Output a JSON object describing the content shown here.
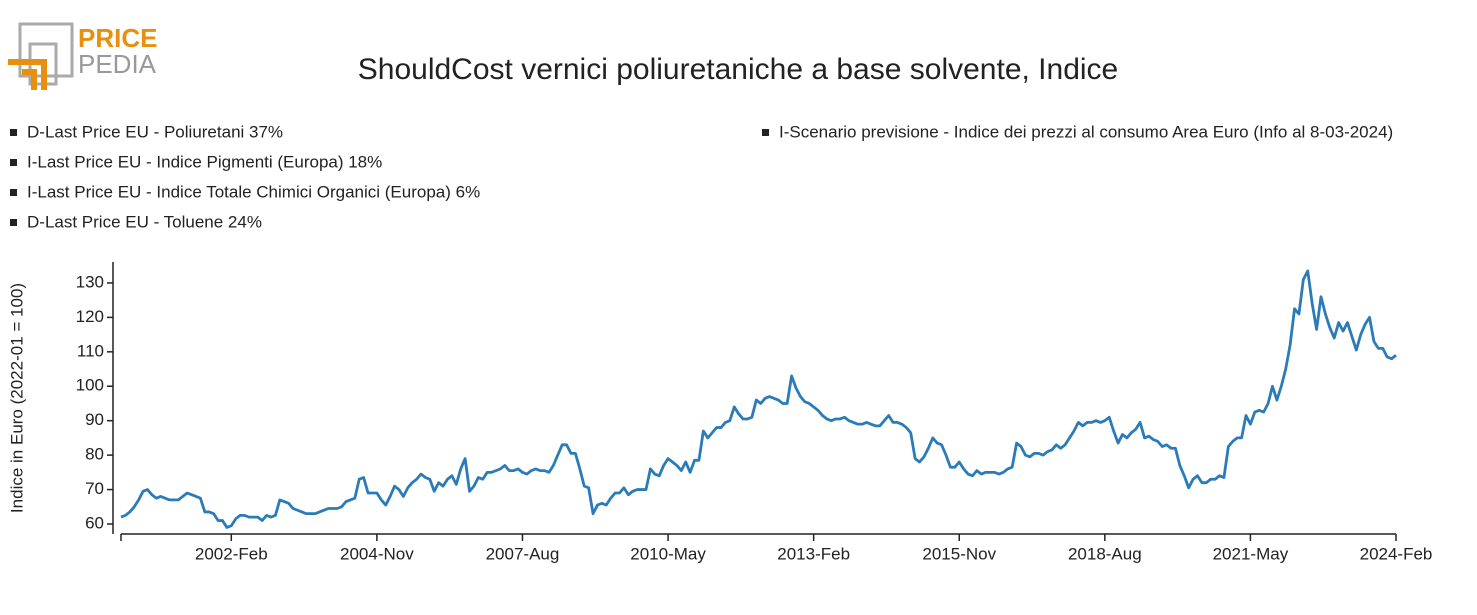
{
  "logo": {
    "top": "PRICE",
    "bottom": "PEDIA"
  },
  "chart_data": {
    "type": "line",
    "title": "ShouldCost vernici poliuretaniche a base solvente, Indice",
    "legend_items": [
      "D-Last Price EU - Poliuretani 37%",
      "I-Last Price EU - Indice Pigmenti (Europa) 18%",
      "I-Last Price EU - Indice Totale Chimici Organici (Europa) 6%",
      "D-Last Price EU - Toluene 24%",
      "I-Scenario previsione - Indice dei prezzi al consumo Area Euro (Info al 8-03-2024)"
    ],
    "y_label": "Indice in Euro (2022-01 = 100)",
    "color": "#2b7bb9",
    "x": [
      "2000-Jan",
      "2000-Feb",
      "2000-Mar",
      "2000-Apr",
      "2000-May",
      "2000-Jun",
      "2000-Jul",
      "2000-Aug",
      "2000-Sep",
      "2000-Oct",
      "2000-Nov",
      "2000-Dec",
      "2001-Jan",
      "2001-Feb",
      "2001-Mar",
      "2001-Apr",
      "2001-May",
      "2001-Jun",
      "2001-Jul",
      "2001-Aug",
      "2001-Sep",
      "2001-Oct",
      "2001-Nov",
      "2001-Dec",
      "2002-Jan",
      "2002-Feb",
      "2002-Mar",
      "2002-Apr",
      "2002-May",
      "2002-Jun",
      "2002-Jul",
      "2002-Aug",
      "2002-Sep",
      "2002-Oct",
      "2002-Nov",
      "2002-Dec",
      "2003-Jan",
      "2003-Feb",
      "2003-Mar",
      "2003-Apr",
      "2003-May",
      "2003-Jun",
      "2003-Jul",
      "2003-Aug",
      "2003-Sep",
      "2003-Oct",
      "2003-Nov",
      "2003-Dec",
      "2004-Jan",
      "2004-Feb",
      "2004-Mar",
      "2004-Apr",
      "2004-May",
      "2004-Jun",
      "2004-Jul",
      "2004-Aug",
      "2004-Sep",
      "2004-Oct",
      "2004-Nov",
      "2004-Dec",
      "2005-Jan",
      "2005-Feb",
      "2005-Mar",
      "2005-Apr",
      "2005-May",
      "2005-Jun",
      "2005-Jul",
      "2005-Aug",
      "2005-Sep",
      "2005-Oct",
      "2005-Nov",
      "2005-Dec",
      "2006-Jan",
      "2006-Feb",
      "2006-Mar",
      "2006-Apr",
      "2006-May",
      "2006-Jun",
      "2006-Jul",
      "2006-Aug",
      "2006-Sep",
      "2006-Oct",
      "2006-Nov",
      "2006-Dec",
      "2007-Jan",
      "2007-Feb",
      "2007-Mar",
      "2007-Apr",
      "2007-May",
      "2007-Jun",
      "2007-Jul",
      "2007-Aug",
      "2007-Sep",
      "2007-Oct",
      "2007-Nov",
      "2007-Dec",
      "2008-Jan",
      "2008-Feb",
      "2008-Mar",
      "2008-Apr",
      "2008-May",
      "2008-Jun",
      "2008-Jul",
      "2008-Aug",
      "2008-Sep",
      "2008-Oct",
      "2008-Nov",
      "2008-Dec",
      "2009-Jan",
      "2009-Feb",
      "2009-Mar",
      "2009-Apr",
      "2009-May",
      "2009-Jun",
      "2009-Jul",
      "2009-Aug",
      "2009-Sep",
      "2009-Oct",
      "2009-Nov",
      "2009-Dec",
      "2010-Jan",
      "2010-Feb",
      "2010-Mar",
      "2010-Apr",
      "2010-May",
      "2010-Jun",
      "2010-Jul",
      "2010-Aug",
      "2010-Sep",
      "2010-Oct",
      "2010-Nov",
      "2010-Dec",
      "2011-Jan",
      "2011-Feb",
      "2011-Mar",
      "2011-Apr",
      "2011-May",
      "2011-Jun",
      "2011-Jul",
      "2011-Aug",
      "2011-Sep",
      "2011-Oct",
      "2011-Nov",
      "2011-Dec",
      "2012-Jan",
      "2012-Feb",
      "2012-Mar",
      "2012-Apr",
      "2012-May",
      "2012-Jun",
      "2012-Jul",
      "2012-Aug",
      "2012-Sep",
      "2012-Oct",
      "2012-Nov",
      "2012-Dec",
      "2013-Jan",
      "2013-Feb",
      "2013-Mar",
      "2013-Apr",
      "2013-May",
      "2013-Jun",
      "2013-Jul",
      "2013-Aug",
      "2013-Sep",
      "2013-Oct",
      "2013-Nov",
      "2013-Dec",
      "2014-Jan",
      "2014-Feb",
      "2014-Mar",
      "2014-Apr",
      "2014-May",
      "2014-Jun",
      "2014-Jul",
      "2014-Aug",
      "2014-Sep",
      "2014-Oct",
      "2014-Nov",
      "2014-Dec",
      "2015-Jan",
      "2015-Feb",
      "2015-Mar",
      "2015-Apr",
      "2015-May",
      "2015-Jun",
      "2015-Jul",
      "2015-Aug",
      "2015-Sep",
      "2015-Oct",
      "2015-Nov",
      "2015-Dec",
      "2016-Jan",
      "2016-Feb",
      "2016-Mar",
      "2016-Apr",
      "2016-May",
      "2016-Jun",
      "2016-Jul",
      "2016-Aug",
      "2016-Sep",
      "2016-Oct",
      "2016-Nov",
      "2016-Dec",
      "2017-Jan",
      "2017-Feb",
      "2017-Mar",
      "2017-Apr",
      "2017-May",
      "2017-Jun",
      "2017-Jul",
      "2017-Aug",
      "2017-Sep",
      "2017-Oct",
      "2017-Nov",
      "2017-Dec",
      "2018-Jan",
      "2018-Feb",
      "2018-Mar",
      "2018-Apr",
      "2018-May",
      "2018-Jun",
      "2018-Jul",
      "2018-Aug",
      "2018-Sep",
      "2018-Oct",
      "2018-Nov",
      "2018-Dec",
      "2019-Jan",
      "2019-Feb",
      "2019-Mar",
      "2019-Apr",
      "2019-May",
      "2019-Jun",
      "2019-Jul",
      "2019-Aug",
      "2019-Sep",
      "2019-Oct",
      "2019-Nov",
      "2019-Dec",
      "2020-Jan",
      "2020-Feb",
      "2020-Mar",
      "2020-Apr",
      "2020-May",
      "2020-Jun",
      "2020-Jul",
      "2020-Aug",
      "2020-Sep",
      "2020-Oct",
      "2020-Nov",
      "2020-Dec",
      "2021-Jan",
      "2021-Feb",
      "2021-Mar",
      "2021-Apr",
      "2021-May",
      "2021-Jun",
      "2021-Jul",
      "2021-Aug",
      "2021-Sep",
      "2021-Oct",
      "2021-Nov",
      "2021-Dec",
      "2022-Jan",
      "2022-Feb",
      "2022-Mar",
      "2022-Apr",
      "2022-May",
      "2022-Jun",
      "2022-Jul",
      "2022-Aug",
      "2022-Sep",
      "2022-Oct",
      "2022-Nov",
      "2022-Dec",
      "2023-Jan",
      "2023-Feb",
      "2023-Mar",
      "2023-Apr",
      "2023-May",
      "2023-Jun",
      "2023-Jul",
      "2023-Aug",
      "2023-Sep",
      "2023-Oct",
      "2023-Nov",
      "2023-Dec",
      "2024-Jan",
      "2024-Feb"
    ],
    "values": [
      62,
      62.5,
      63.5,
      65,
      67,
      69.5,
      70,
      68.5,
      67.5,
      68,
      67.5,
      67,
      67,
      67,
      68,
      69,
      68.5,
      68,
      67.5,
      63.5,
      63.5,
      63,
      61,
      61,
      59,
      59.5,
      61.5,
      62.5,
      62.5,
      62,
      62,
      62,
      61,
      62.5,
      62,
      62.5,
      67,
      66.5,
      66,
      64.5,
      64,
      63.5,
      63,
      63,
      63,
      63.5,
      64,
      64.5,
      64.5,
      64.5,
      65,
      66.5,
      67,
      67.5,
      73,
      73.5,
      69,
      69,
      69,
      67,
      65.5,
      68,
      71,
      70,
      68,
      70.5,
      72,
      73,
      74.5,
      73.5,
      73,
      69.5,
      72,
      71,
      73,
      74,
      71.5,
      76,
      79,
      69.5,
      71,
      73.5,
      73,
      75,
      75,
      75.5,
      76,
      77,
      75.5,
      75.5,
      76,
      75,
      74.5,
      75.5,
      76,
      75.5,
      75.5,
      75,
      77,
      80,
      83,
      83,
      80.5,
      80.5,
      76,
      71,
      70.5,
      63,
      65.5,
      66,
      65.5,
      67.5,
      69,
      69,
      70.5,
      68.5,
      69.5,
      70,
      70,
      70,
      76,
      74.5,
      74,
      77,
      79,
      78,
      77,
      75.5,
      78,
      75,
      78.5,
      78.5,
      87,
      85,
      86.5,
      88,
      88,
      89.5,
      90,
      94,
      92,
      90.5,
      90.5,
      91,
      96,
      95,
      96.5,
      97,
      96.5,
      96,
      95,
      95,
      103,
      99.5,
      97,
      95.5,
      95,
      94,
      93,
      91.5,
      90.5,
      90,
      90.5,
      90.5,
      91,
      90,
      89.5,
      89,
      89,
      89.5,
      89,
      88.5,
      88.5,
      90,
      91.5,
      89.5,
      89.5,
      89,
      88,
      86.5,
      79,
      78,
      79.5,
      82,
      85,
      83.5,
      83,
      80,
      76.5,
      76.5,
      78,
      76,
      74.5,
      74,
      75.5,
      74.5,
      75,
      75,
      75,
      74.5,
      75,
      76,
      76.5,
      83.5,
      82.5,
      80,
      79.5,
      80.5,
      80.5,
      80,
      81,
      81.5,
      83,
      82,
      83,
      85,
      87,
      89.5,
      88.5,
      89.5,
      89.5,
      90,
      89.5,
      90,
      91,
      87,
      83.5,
      86,
      85,
      86.5,
      87.5,
      89.5,
      85,
      85.5,
      84.5,
      84,
      82.5,
      83,
      82,
      82,
      77,
      74,
      70.5,
      73,
      74,
      72,
      72,
      73,
      73,
      74,
      73.5,
      82.5,
      84,
      85,
      85,
      91.5,
      89,
      92.5,
      93,
      92.5,
      95,
      100,
      96,
      100,
      105,
      112,
      122.5,
      121,
      131,
      133.5,
      124,
      116.5,
      126,
      121,
      117,
      114,
      118.5,
      116,
      118.5,
      114.5,
      110.5,
      115,
      118,
      120,
      113,
      111,
      111,
      108.5,
      108,
      109
    ],
    "xticks": [
      "2002-Feb",
      "2004-Nov",
      "2007-Aug",
      "2010-May",
      "2013-Feb",
      "2015-Nov",
      "2018-Aug",
      "2021-May",
      "2024-Feb"
    ],
    "ylim": [
      57.5,
      136
    ],
    "yticks": [
      60,
      70,
      80,
      90,
      100,
      110,
      120,
      130
    ],
    "grid": false
  }
}
